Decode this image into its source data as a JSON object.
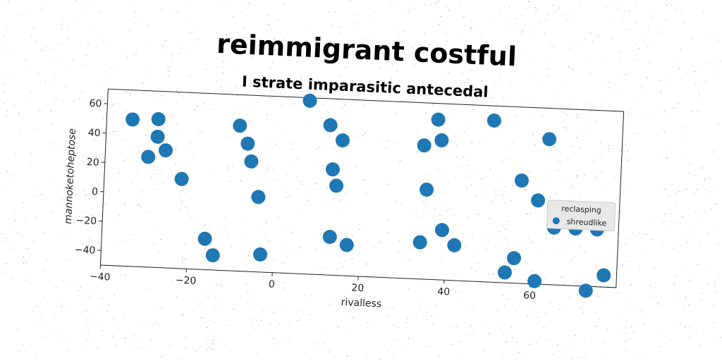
{
  "chart_data": {
    "type": "scatter",
    "title": "reimmigrant costful",
    "subtitle": "I strate imparasitic antecedal",
    "xlabel": "rivalless",
    "ylabel": "mannoketoheptose",
    "xlim": [
      -40,
      80
    ],
    "ylim": [
      -50,
      70
    ],
    "xticks": [
      -40,
      -20,
      0,
      20,
      40,
      60
    ],
    "yticks": [
      -40,
      -20,
      0,
      20,
      40,
      60
    ],
    "x_tick_labels": [
      "−40",
      "−20",
      "0",
      "20",
      "40",
      "60"
    ],
    "y_tick_labels": [
      "−40",
      "−20",
      "0",
      "20",
      "40",
      "60"
    ],
    "grid": false,
    "legend_placement": "right",
    "legend_title": "reclasping",
    "series": [
      {
        "name": "shreudlike",
        "color": "#1f77b4",
        "x": [
          -34,
          -28,
          -28,
          -26,
          -30,
          -22,
          -9,
          -7,
          -6,
          -4,
          -16,
          -14,
          -3,
          7,
          12,
          15,
          13,
          14,
          17,
          13,
          34,
          37,
          35,
          34,
          39,
          42,
          38,
          50,
          54,
          57,
          61,
          63,
          65,
          70,
          75,
          56,
          61,
          73,
          77
        ],
        "y": [
          50,
          51,
          39,
          30,
          25,
          11,
          49,
          37,
          25,
          1,
          -29,
          -40,
          -38,
          68,
          52,
          42,
          22,
          11,
          -29,
          -24,
          41,
          59,
          11,
          -25,
          -16,
          -26,
          45,
          60,
          -43,
          20,
          7,
          49,
          -11,
          -11,
          -11,
          -33,
          -48,
          -53,
          -42
        ]
      }
    ]
  }
}
